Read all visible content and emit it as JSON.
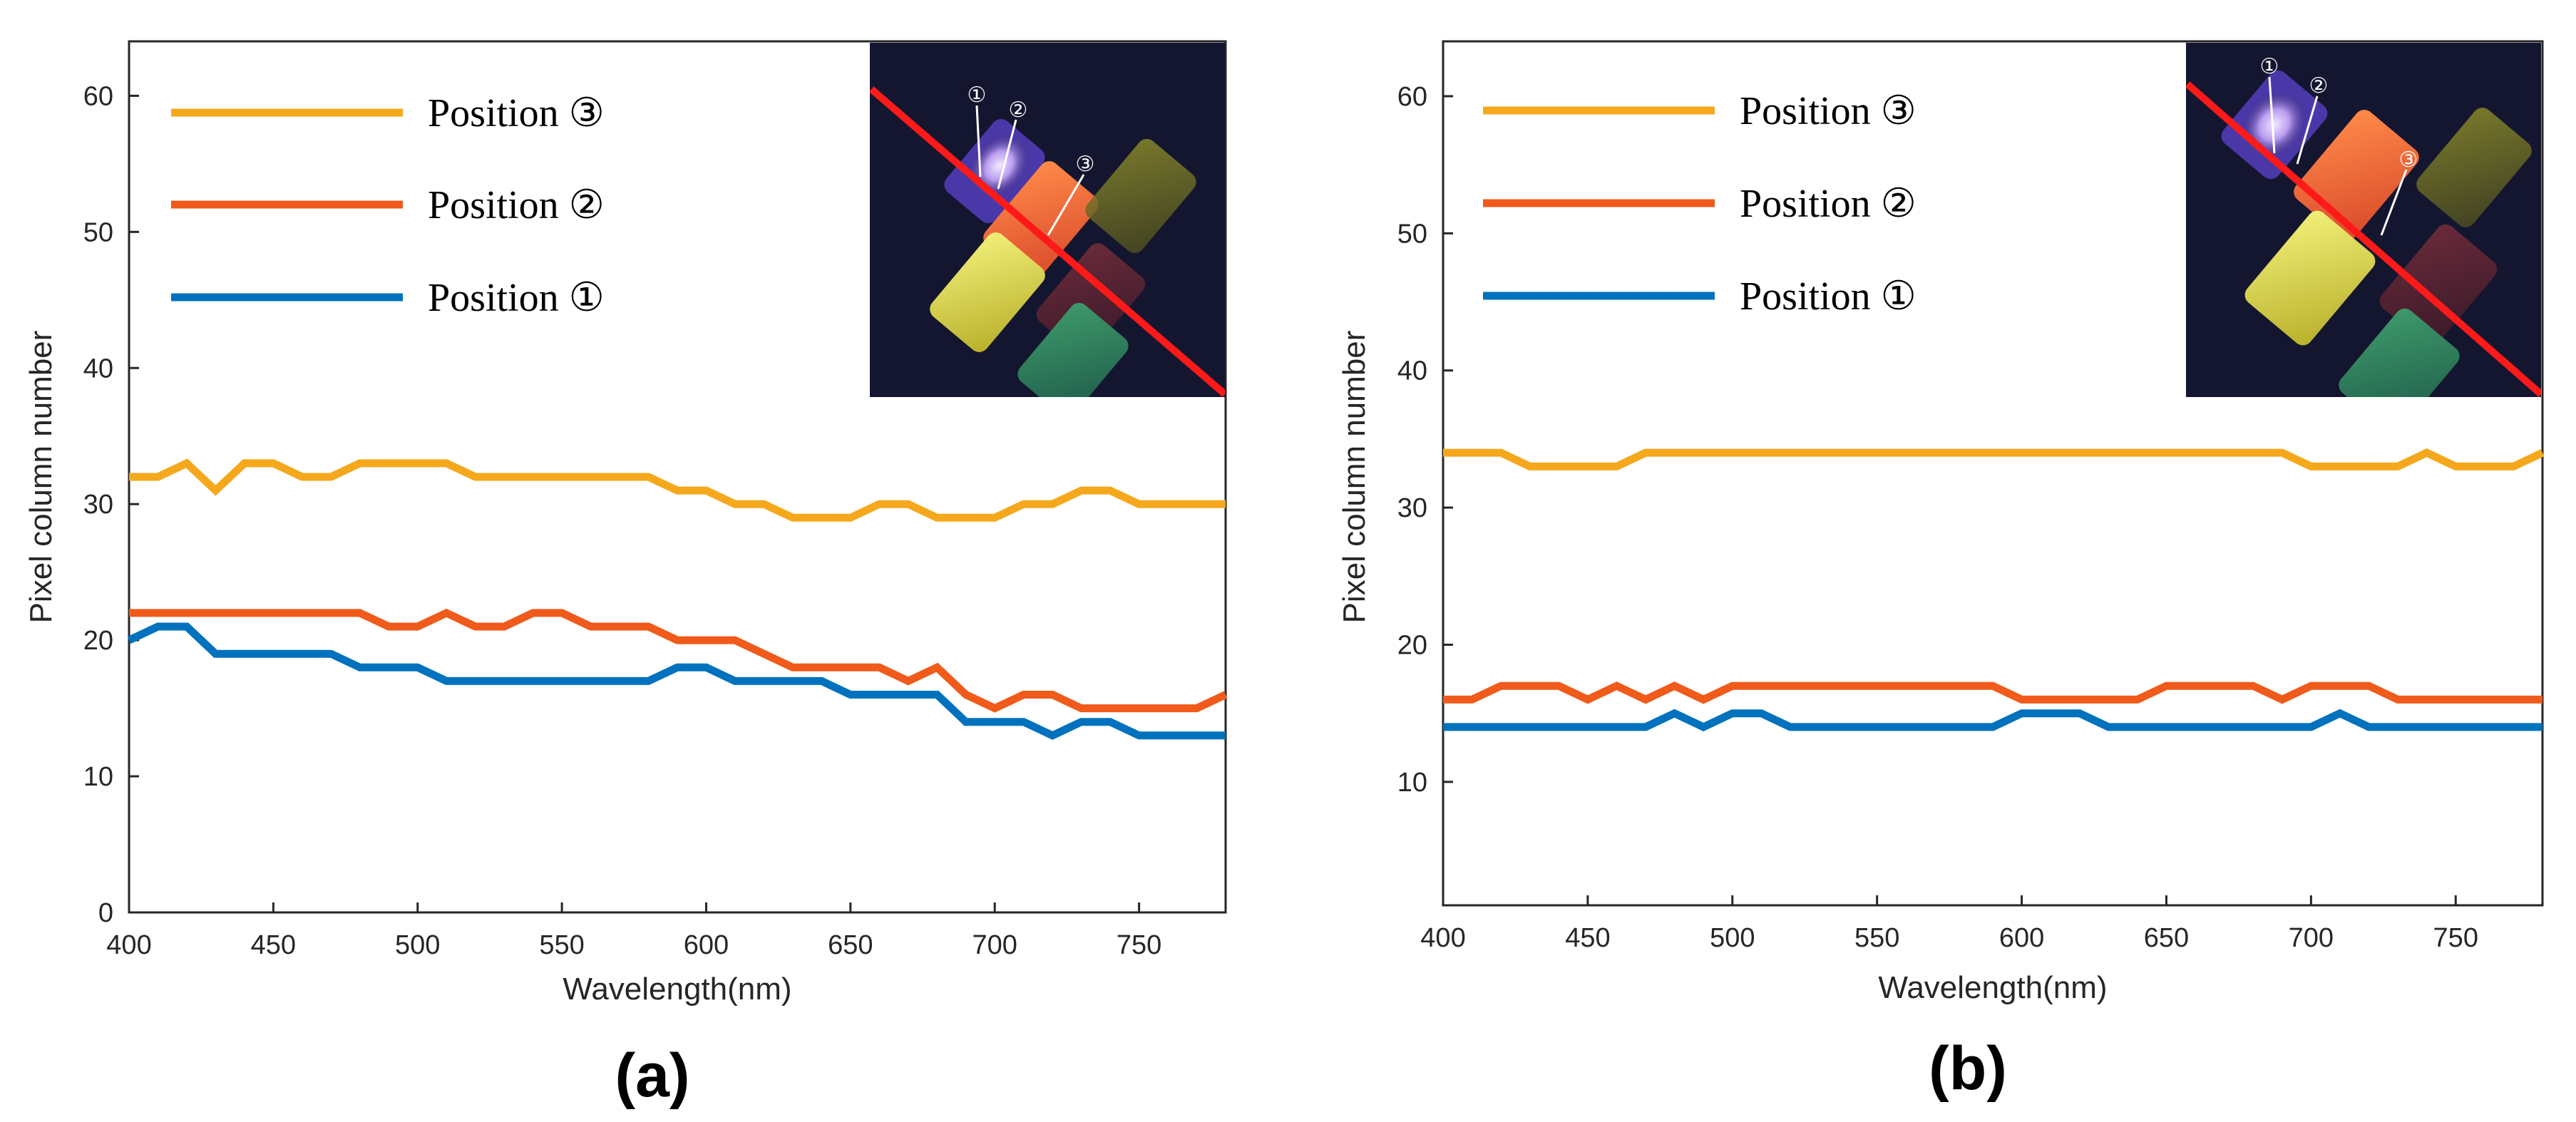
{
  "colors": {
    "position1": "#0072BD",
    "position2": "#F05A1A",
    "position3": "#F5A81C",
    "inset_line": "#ff1a1a",
    "axis": "#262626"
  },
  "chart_data": [
    {
      "panel": "(a)",
      "type": "line",
      "title": "",
      "xlabel": "Wavelength(nm)",
      "ylabel": "Pixel column number",
      "xlim": [
        400,
        780
      ],
      "ylim": [
        0,
        64
      ],
      "xticks": [
        400,
        450,
        500,
        550,
        600,
        650,
        700,
        750
      ],
      "yticks": [
        0,
        10,
        20,
        30,
        40,
        50,
        60
      ],
      "legend_position": "top-left",
      "inset": {
        "description": "photo",
        "markers": [
          "①",
          "②",
          "③"
        ]
      },
      "x": [
        400,
        410,
        420,
        430,
        440,
        450,
        460,
        470,
        480,
        490,
        500,
        510,
        520,
        530,
        540,
        550,
        560,
        570,
        580,
        590,
        600,
        610,
        620,
        630,
        640,
        650,
        660,
        670,
        680,
        690,
        700,
        710,
        720,
        730,
        740,
        750,
        760,
        770,
        780
      ],
      "series": [
        {
          "name": "Position ③",
          "color_key": "position3",
          "values": [
            32,
            32,
            33,
            31,
            33,
            33,
            32,
            32,
            33,
            33,
            33,
            33,
            32,
            32,
            32,
            32,
            32,
            32,
            32,
            31,
            31,
            30,
            30,
            29,
            29,
            29,
            30,
            30,
            29,
            29,
            29,
            30,
            30,
            31,
            31,
            30,
            30,
            30,
            30
          ]
        },
        {
          "name": "Position ②",
          "color_key": "position2",
          "values": [
            22,
            22,
            22,
            22,
            22,
            22,
            22,
            22,
            22,
            21,
            21,
            22,
            21,
            21,
            22,
            22,
            21,
            21,
            21,
            20,
            20,
            20,
            19,
            18,
            18,
            18,
            18,
            17,
            18,
            16,
            15,
            16,
            16,
            15,
            15,
            15,
            15,
            15,
            16
          ]
        },
        {
          "name": "Position ①",
          "color_key": "position1",
          "values": [
            20,
            21,
            21,
            19,
            19,
            19,
            19,
            19,
            18,
            18,
            18,
            17,
            17,
            17,
            17,
            17,
            17,
            17,
            17,
            18,
            18,
            17,
            17,
            17,
            17,
            16,
            16,
            16,
            16,
            14,
            14,
            14,
            13,
            14,
            14,
            13,
            13,
            13,
            13
          ]
        }
      ]
    },
    {
      "panel": "(b)",
      "type": "line",
      "title": "",
      "xlabel": "Wavelength(nm)",
      "ylabel": "Pixel column number",
      "xlim": [
        400,
        780
      ],
      "ylim": [
        1,
        64
      ],
      "xticks": [
        400,
        450,
        500,
        550,
        600,
        650,
        700,
        750
      ],
      "yticks": [
        10,
        20,
        30,
        40,
        50,
        60
      ],
      "legend_position": "top-left",
      "inset": {
        "description": "photo",
        "markers": [
          "①",
          "②",
          "③"
        ]
      },
      "x": [
        400,
        410,
        420,
        430,
        440,
        450,
        460,
        470,
        480,
        490,
        500,
        510,
        520,
        530,
        540,
        550,
        560,
        570,
        580,
        590,
        600,
        610,
        620,
        630,
        640,
        650,
        660,
        670,
        680,
        690,
        700,
        710,
        720,
        730,
        740,
        750,
        760,
        770,
        780
      ],
      "series": [
        {
          "name": "Position ③",
          "color_key": "position3",
          "values": [
            34,
            34,
            34,
            33,
            33,
            33,
            33,
            34,
            34,
            34,
            34,
            34,
            34,
            34,
            34,
            34,
            34,
            34,
            34,
            34,
            34,
            34,
            34,
            34,
            34,
            34,
            34,
            34,
            34,
            34,
            33,
            33,
            33,
            33,
            34,
            33,
            33,
            33,
            34
          ]
        },
        {
          "name": "Position ②",
          "color_key": "position2",
          "values": [
            16,
            16,
            17,
            17,
            17,
            16,
            17,
            16,
            17,
            16,
            17,
            17,
            17,
            17,
            17,
            17,
            17,
            17,
            17,
            17,
            16,
            16,
            16,
            16,
            16,
            17,
            17,
            17,
            17,
            16,
            17,
            17,
            17,
            16,
            16,
            16,
            16,
            16,
            16
          ]
        },
        {
          "name": "Position ①",
          "color_key": "position1",
          "values": [
            14,
            14,
            14,
            14,
            14,
            14,
            14,
            14,
            15,
            14,
            15,
            15,
            14,
            14,
            14,
            14,
            14,
            14,
            14,
            14,
            15,
            15,
            15,
            14,
            14,
            14,
            14,
            14,
            14,
            14,
            14,
            15,
            14,
            14,
            14,
            14,
            14,
            14,
            14
          ]
        }
      ]
    }
  ]
}
